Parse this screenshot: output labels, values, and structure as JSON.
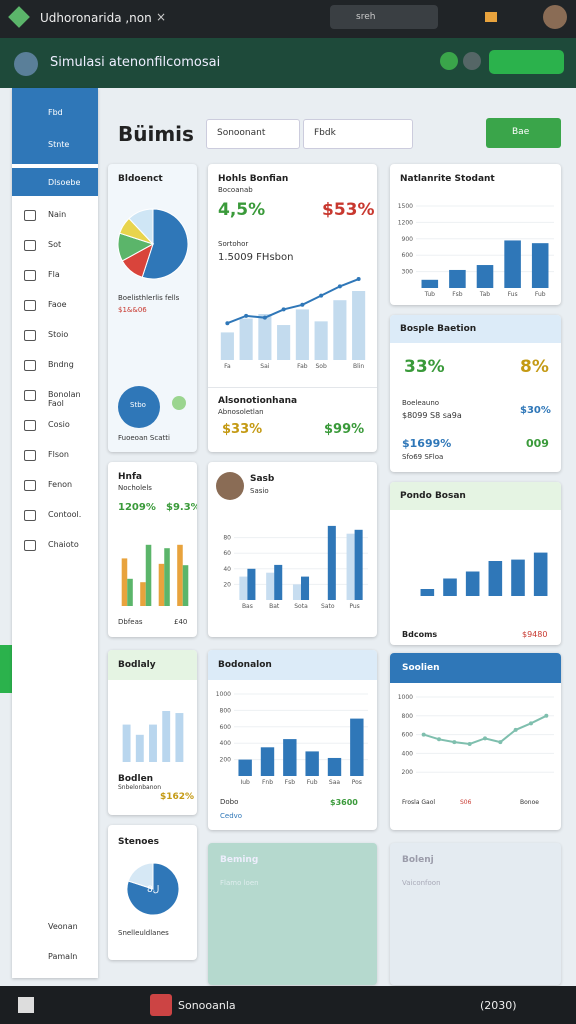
{
  "top_bar": {
    "tab_title": "Udhoronarida ,non",
    "close": "×",
    "search": "sreh"
  },
  "app": {
    "title": "Simulasi atenonfilcomosai"
  },
  "sidebar": {
    "top_items": [
      "Fbd",
      "Stnte"
    ],
    "active": "Dlsoebe",
    "items": [
      "Nain",
      "Sot",
      "Fla",
      "Faoe",
      "Stoio",
      "Bndng",
      "Bonolan Faol",
      "Cosio",
      "Flson",
      "Fenon",
      "Contool.",
      "Chaioto"
    ],
    "bottom_items": [
      "Veonan",
      "Pamaln"
    ]
  },
  "main": {
    "title": "Büimis",
    "dropdown_1": "Sonoonant",
    "dropdown_2": "Fbdk",
    "button": "Bae"
  },
  "cards": [
    {
      "title": "Bldoenct",
      "caption": "Boelisthlerlis fells",
      "value": "$1&&06",
      "badge": "Stbo",
      "footer": "Fuoeoan Scatti",
      "chart": {
        "type": "pie",
        "series": [
          {
            "colors": [
              "#2f77b8",
              "#d9443b",
              "#5bb56a",
              "#e8d44d",
              "#cfe6f5"
            ],
            "values": [
              55,
              12,
              13,
              8,
              12
            ]
          }
        ]
      }
    },
    {
      "title": "Hohls Bonfian",
      "subtitle": "Bocoanab",
      "kpi_1": "4,5%",
      "kpi_2": "$53%",
      "caption": "Sortohor",
      "value": "1.5009 FHsbon",
      "footer_title": "Alsonotionhana",
      "footer_sub": "Abnosoletlan",
      "footer_kpi_1": "$33%",
      "footer_kpi_2": "$99%",
      "chart": {
        "type": "line",
        "ylim": [
          0,
          100
        ],
        "categories": [
          "Fa",
          null,
          "Sai",
          null,
          "Fab",
          "Sob",
          null,
          "Blin"
        ],
        "series": [
          {
            "type": "bar",
            "color": "#c3dbee",
            "values": [
              30,
              45,
              50,
              38,
              55,
              42,
              65,
              75
            ]
          },
          {
            "type": "line",
            "color": "#2f77b8",
            "values": [
              40,
              48,
              46,
              55,
              60,
              70,
              80,
              88
            ]
          }
        ]
      }
    },
    {
      "title": "Natlanrite Stodant",
      "chart": {
        "type": "bar",
        "ylim": [
          0,
          1500
        ],
        "yticks": [
          300,
          600,
          900,
          1200,
          1500
        ],
        "categories": [
          "Tub",
          "Fsb",
          "Tab",
          "Fus",
          "Fub"
        ],
        "series": [
          {
            "color": "#2f77b8",
            "values": [
              150,
              330,
              420,
              870,
              820
            ]
          }
        ]
      }
    },
    {
      "title": "Bosple Baetion",
      "kpi_1": "33%",
      "kpi_2": "8%",
      "line_1": "Boeleauno",
      "line_2": "$8099 S8 sa9a",
      "value_1": "$30%",
      "value_2": "$1699%",
      "value_3": "009",
      "line_3": "Sfo69 SFloa"
    },
    {
      "title": "Hnfa",
      "subtitle": "Nocholels",
      "kpi_1": "1209%",
      "kpi_2": "$9.3%",
      "footer_1": "Dbfeas",
      "footer_2": "£40",
      "chart": {
        "type": "bar",
        "ylim": [
          0,
          100
        ],
        "series": [
          {
            "color": "#e8a33d",
            "values": [
              70,
              35,
              62,
              90
            ]
          },
          {
            "color": "#5bb56a",
            "values": [
              40,
              90,
              85,
              60
            ]
          }
        ]
      }
    },
    {
      "title": "Sasb",
      "subtitle": "Sasio",
      "chart": {
        "type": "bar",
        "ylim": [
          0,
          100
        ],
        "yticks": [
          20,
          40,
          60,
          80
        ],
        "categories": [
          "Bas",
          "Bat",
          "Sota",
          "Sato",
          "Pus"
        ],
        "series": [
          {
            "color": "#c7ddf0",
            "values": [
              30,
              35,
              20,
              0,
              85
            ]
          },
          {
            "color": "#2f77b8",
            "values": [
              40,
              45,
              30,
              95,
              90
            ]
          }
        ]
      }
    },
    {
      "title": "Pondo Bosan",
      "footer_1": "Bdcoms",
      "footer_2": "$9480",
      "chart": {
        "type": "bar",
        "ylim": [
          0,
          100
        ],
        "series": [
          {
            "color": "#2f77b8",
            "values": [
              10,
              25,
              35,
              50,
              52,
              62
            ]
          }
        ]
      }
    },
    {
      "title": "Bodlaly",
      "caption": "Bodlen",
      "sub": "Snbelonbanon",
      "kpi": "$162%",
      "chart": {
        "type": "bar",
        "ylim": [
          0,
          100
        ],
        "series": [
          {
            "color": "#b9d6ee",
            "values": [
              55,
              40,
              55,
              75,
              72
            ]
          }
        ]
      }
    },
    {
      "title": "Bodonalon",
      "footer_1": "Dobo",
      "footer_2": "$3600",
      "footer_3": "Cedvo",
      "chart": {
        "type": "bar",
        "ylim": [
          0,
          1000
        ],
        "yticks": [
          200,
          400,
          600,
          800,
          1000
        ],
        "categories": [
          "Iub",
          "Fnb",
          "Fsb",
          "Fub",
          "Saa",
          "Pos"
        ],
        "series": [
          {
            "color": "#2f77b8",
            "values": [
              200,
              350,
              450,
              300,
              220,
              700
            ]
          }
        ]
      }
    },
    {
      "title": "Soolien",
      "footer_1": "Frosla Gaol",
      "footer_2": "S06",
      "footer_3": "Bonoe",
      "chart": {
        "type": "line",
        "ylim": [
          0,
          1000
        ],
        "yticks": [
          200,
          400,
          600,
          800,
          1000
        ],
        "series": [
          {
            "type": "line",
            "color": "#7fbfae",
            "values": [
              600,
              550,
              520,
              500,
              560,
              520,
              650,
              720,
              800
            ]
          }
        ]
      }
    },
    {
      "title": "Stenoes",
      "center": "8ل",
      "caption": "Snelleuldlanes",
      "chart": {
        "type": "pie",
        "series": [
          {
            "colors": [
              "#2f77b8",
              "#d6e8f5"
            ],
            "values": [
              80,
              20
            ]
          }
        ]
      }
    },
    {
      "title": "Beming",
      "sub": "Flamo loen"
    },
    {
      "title": "Bolenj",
      "sub": "Vaiconfoon"
    }
  ],
  "taskbar": {
    "app": "Sonooanla",
    "clock": "(2030)"
  }
}
